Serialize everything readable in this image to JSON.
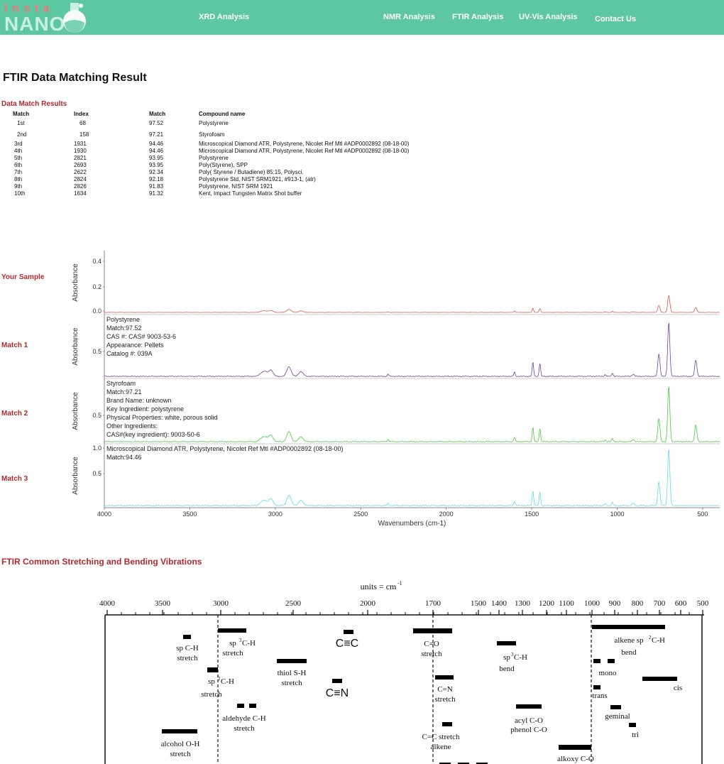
{
  "logo": {
    "line1": "Insta",
    "line2": "NANO"
  },
  "nav": [
    "XRD Analysis",
    "NMR Analysis",
    "FTIR Analysis",
    "UV-Vis Analysis",
    "Contact Us"
  ],
  "page_title": "FTIR Data Matching Result",
  "results_heading": "Data Match Results",
  "results_table": {
    "headers": [
      "Match",
      "Index",
      "Match",
      "Compound name"
    ],
    "rows": [
      [
        "1st",
        "68",
        "97.52",
        "Polystyrene"
      ],
      [
        "2nd",
        "158",
        "97.21",
        "Styrofoam"
      ],
      [
        "3rd",
        "1931",
        "94.46",
        "Microscopical Diamond ATR, Polystyrene, Nicolet Ref Mtl #ADP0002892 (08-18-00)"
      ],
      [
        "4th",
        "1930",
        "94.46",
        "Microscopical Diamond ATR, Polystyrene, Nicolet Ref Mtl #ADP0002892 (08-18-00)"
      ],
      [
        "5th",
        "2821",
        "93.95",
        "Polystyrene"
      ],
      [
        "6th",
        "2693",
        "93.95",
        "Poly(Styrene), SPP"
      ],
      [
        "7th",
        "2622",
        "92.34",
        "Poly( Styrene / Butadiene) 85:15, Polysci."
      ],
      [
        "8th",
        "2824",
        "92.18",
        "Polystyrene Std, NIST SRM1921, #913-1, (atr)"
      ],
      [
        "9th",
        "2826",
        "91.83",
        "Polystyrene, NIST SRM 1921"
      ],
      [
        "10th",
        "1634",
        "91.32",
        "Kent, Impact Tungsten Matrix Shot buffer"
      ]
    ]
  },
  "side_labels": [
    "Your Sample",
    "Match 1",
    "Match 2",
    "Match 3"
  ],
  "colors": {
    "accent": "#5dc7a2",
    "heading_red": "#b3292a",
    "sample": "#e0554a",
    "match1": "#6a3fa8",
    "match2": "#44cc3a",
    "match3": "#5fd8ea"
  },
  "chart_data": [
    {
      "type": "line",
      "xlabel": "Wavenumbers (cm-1)",
      "x_ticks": [
        4000,
        3500,
        3000,
        2500,
        2000,
        1500,
        1000,
        500
      ],
      "xlim": [
        4000,
        400
      ],
      "ylabel": "Absorbance",
      "panels": [
        {
          "name": "Your Sample",
          "y_ticks": [
            "0.4",
            "0.2",
            "0.0"
          ],
          "ylim": [
            0,
            0.45
          ],
          "info": []
        },
        {
          "name": "Match 1",
          "y_ticks": [
            "0.5"
          ],
          "ylim": [
            0,
            1
          ],
          "info": [
            "Polystyrene",
            "Match:97.52",
            "CAS #:  CAS# 9003-53-6",
            "Appearance:  Pellets",
            "Catalog #:  039A"
          ]
        },
        {
          "name": "Match 2",
          "y_ticks": [
            "0.5"
          ],
          "ylim": [
            0,
            1
          ],
          "info": [
            "Styrofoam",
            "Match:97.21",
            "Brand Name:  unknown",
            "Key Ingredient:  polystyrene",
            "Physical Properties:  white, porous solid",
            "Other Ingredients:",
            "CAS#(key ingredient):  9003-50-6"
          ]
        },
        {
          "name": "Match 3",
          "y_ticks": [
            "1.0",
            "0.5"
          ],
          "ylim": [
            0,
            1
          ],
          "info": [
            "Microscopical Diamond ATR, Polystyrene, Nicolet Ref Mtl #ADP0002892 (08-18-00)",
            "Match:94.46"
          ]
        }
      ],
      "peaks": [
        {
          "x": 3082,
          "h": 0.05
        },
        {
          "x": 3060,
          "h": 0.08
        },
        {
          "x": 3026,
          "h": 0.12
        },
        {
          "x": 2920,
          "h": 0.18
        },
        {
          "x": 2850,
          "h": 0.09
        },
        {
          "x": 2340,
          "h": 0.04
        },
        {
          "x": 1601,
          "h": 0.08
        },
        {
          "x": 1493,
          "h": 0.26
        },
        {
          "x": 1452,
          "h": 0.24
        },
        {
          "x": 1070,
          "h": 0.03
        },
        {
          "x": 1028,
          "h": 0.06
        },
        {
          "x": 906,
          "h": 0.04
        },
        {
          "x": 756,
          "h": 0.42
        },
        {
          "x": 698,
          "h": 1.0
        },
        {
          "x": 540,
          "h": 0.3
        }
      ]
    },
    {
      "type": "table",
      "title": "FTIR Common Stretching and Bending Vibrations",
      "units_label": "units = cm",
      "units_sup": "-1",
      "x_ticks": [
        "4000",
        "3500",
        "3000",
        "2500",
        "2000",
        "1700",
        "1500",
        "1400",
        "1300",
        "1200",
        "1100",
        "1000",
        "900",
        "800",
        "700",
        "600",
        "500"
      ],
      "labels": [
        "sp C-H stretch",
        "sp3 C-H stretch",
        "sp2 C-H stretch",
        "aldehyde C-H stretch",
        "alcohol O-H stretch",
        "thiol S-H stretch",
        "C≡C",
        "C≡N",
        "C=O stretch",
        "C=N stretch",
        "C=C stretch alkene",
        "sp3 C-H bend",
        "acyl C-O phenol C-O",
        "alkoxy C-O",
        "alkene sp2 C-H bend",
        "mono",
        "cis",
        "trans",
        "geminal",
        "tri"
      ]
    }
  ],
  "bottom_heading": "FTIR Common Stretching and Bending Vibrations"
}
